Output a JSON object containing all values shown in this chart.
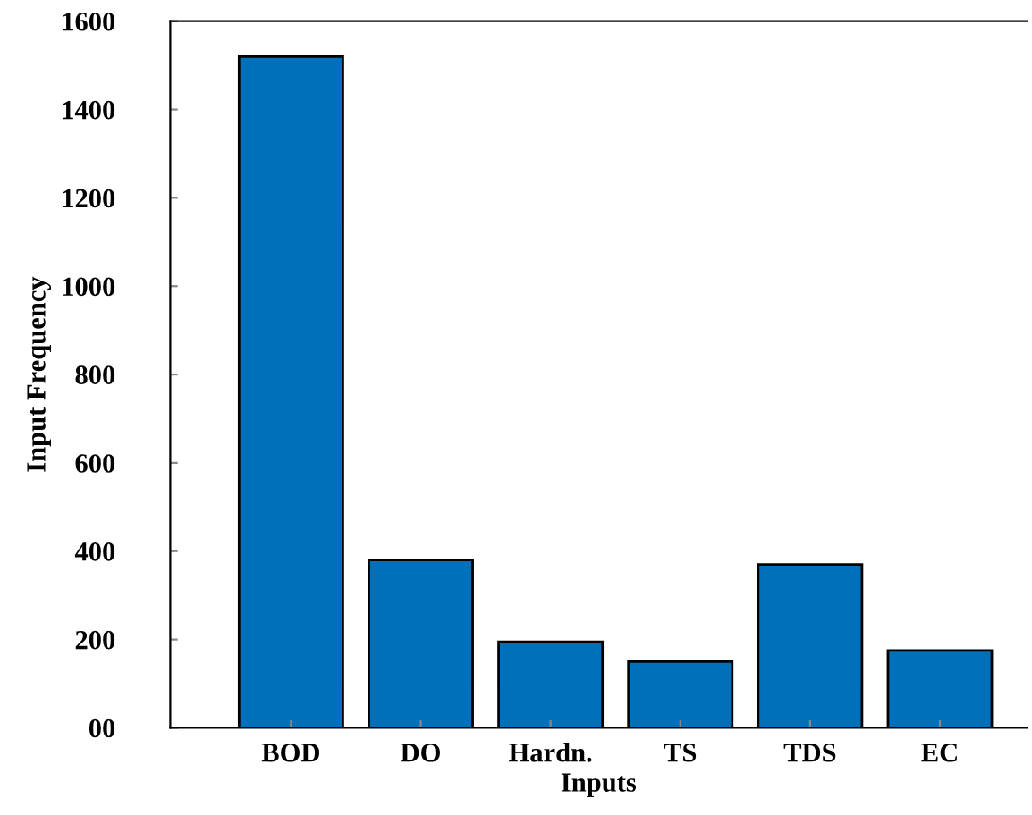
{
  "chart_data": {
    "type": "bar",
    "xlabel": "Inputs",
    "ylabel": "Input Frequency",
    "categories": [
      "BOD",
      "DO",
      "Hardn.",
      "TS",
      "TDS",
      "EC"
    ],
    "values": [
      1520,
      380,
      195,
      150,
      370,
      175
    ],
    "color": "#0070bb",
    "ylim": [
      0,
      1600
    ],
    "yticks": [
      {
        "value": 0,
        "label": "00"
      },
      200,
      400,
      600,
      800,
      1000,
      1200,
      1400,
      1600
    ],
    "grid": false,
    "legend": false
  }
}
